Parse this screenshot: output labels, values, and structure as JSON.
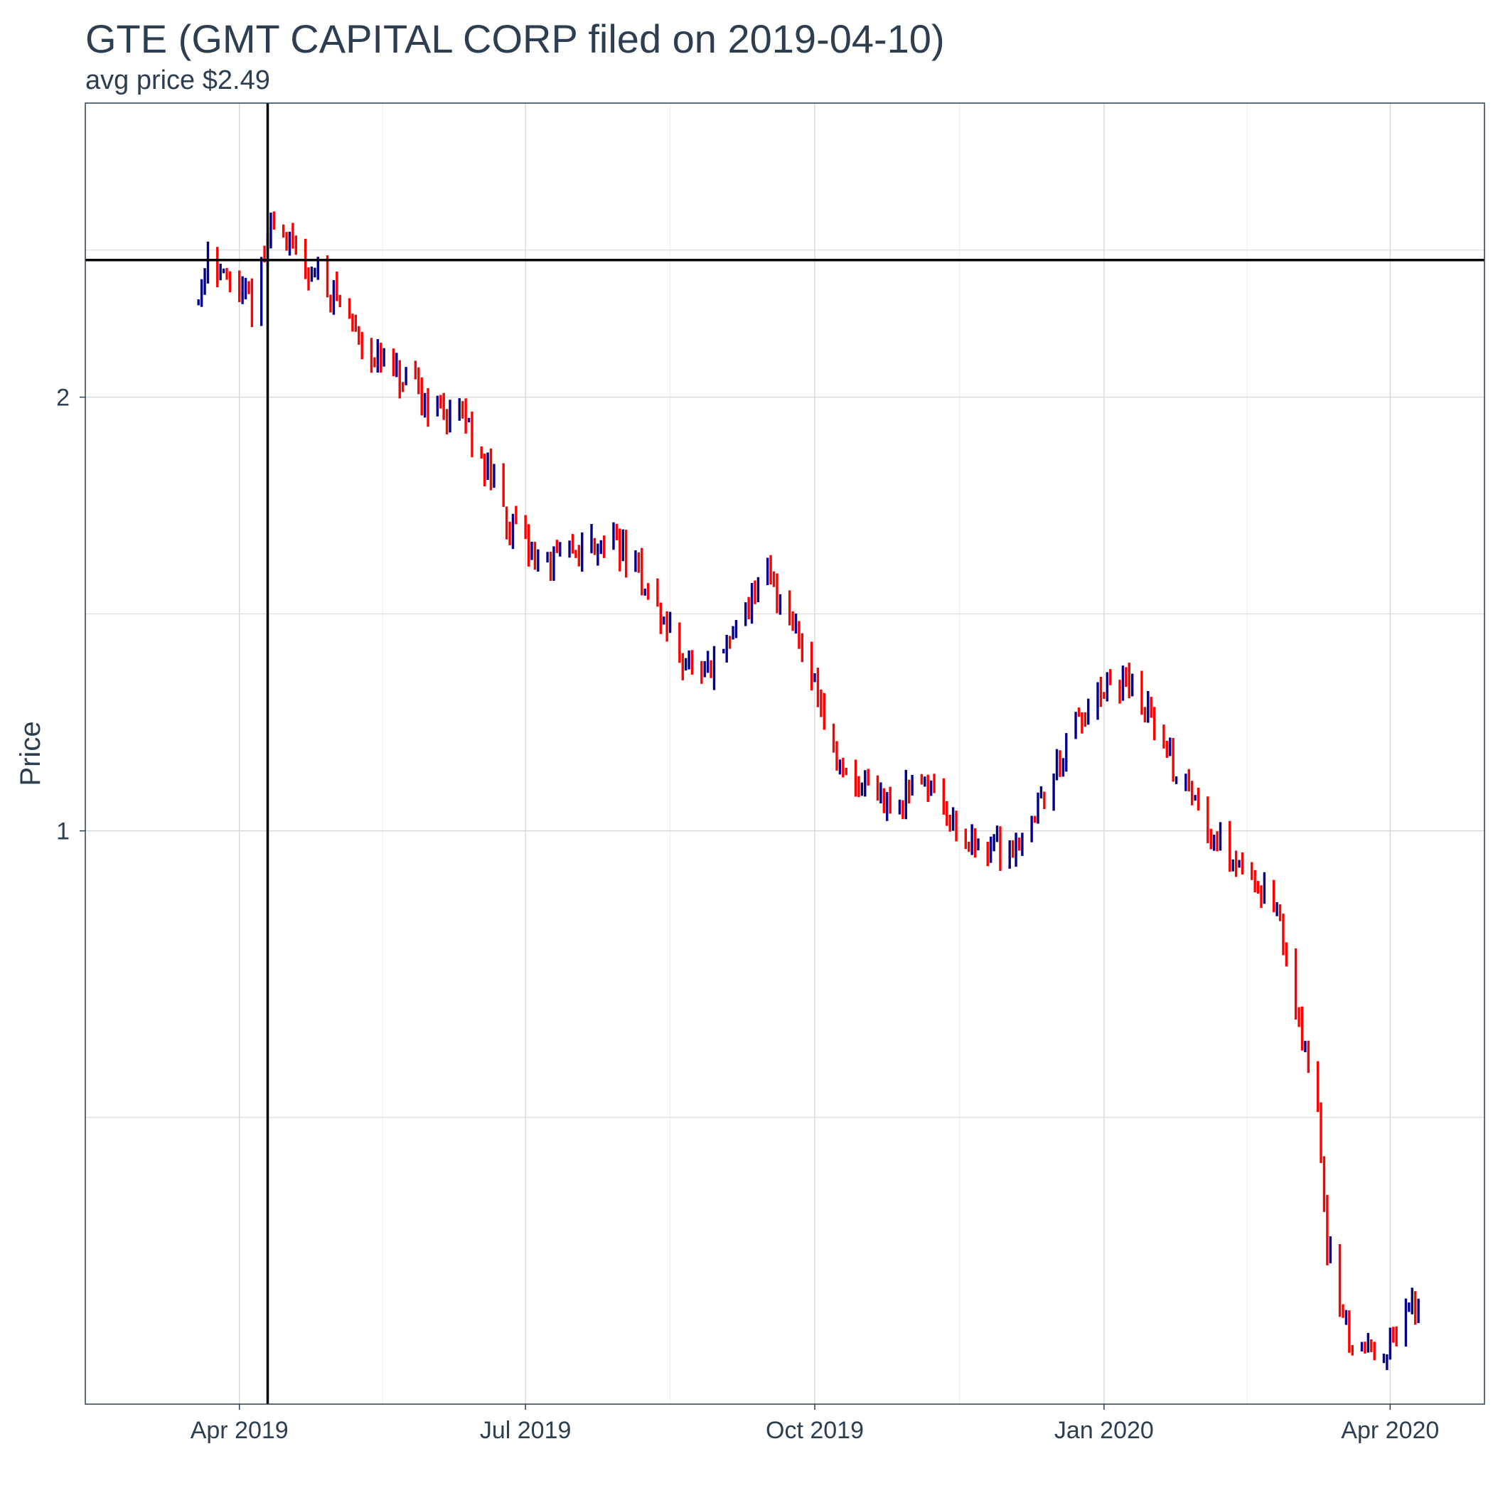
{
  "chart_data": {
    "type": "ohlc",
    "title": "GTE (GMT CAPITAL CORP filed on 2019-04-10)",
    "subtitle": "avg price $2.49",
    "xlabel": "",
    "ylabel": "Price",
    "x_ticks": [
      {
        "label": "Apr 2019",
        "date": "2019-04-01"
      },
      {
        "label": "Jul 2019",
        "date": "2019-07-01"
      },
      {
        "label": "Oct 2019",
        "date": "2019-10-01"
      },
      {
        "label": "Jan 2020",
        "date": "2020-01-01"
      },
      {
        "label": "Apr 2020",
        "date": "2020-04-01"
      }
    ],
    "y_scale": "log",
    "y_ticks": [
      1,
      2
    ],
    "x_range": [
      "2019-02-11",
      "2020-05-01"
    ],
    "y_range": [
      0.4,
      3.2
    ],
    "grid": true,
    "up_color": "#00008b",
    "down_color": "#ff0000",
    "reference_lines": {
      "vertical_date": "2019-04-10",
      "horizontal_price": 2.49
    },
    "anchors": [
      [
        "2019-03-19",
        2.33
      ],
      [
        "2019-03-22",
        2.55
      ],
      [
        "2019-03-27",
        2.42
      ],
      [
        "2019-04-01",
        2.35
      ],
      [
        "2019-04-05",
        2.33
      ],
      [
        "2019-04-09",
        2.5
      ],
      [
        "2019-04-12",
        2.68
      ],
      [
        "2019-04-18",
        2.52
      ],
      [
        "2019-04-24",
        2.45
      ],
      [
        "2019-05-01",
        2.36
      ],
      [
        "2019-05-08",
        2.23
      ],
      [
        "2019-05-15",
        2.12
      ],
      [
        "2019-05-22",
        2.05
      ],
      [
        "2019-05-29",
        2.0
      ],
      [
        "2019-06-05",
        1.96
      ],
      [
        "2019-06-12",
        1.93
      ],
      [
        "2019-06-19",
        1.78
      ],
      [
        "2019-06-26",
        1.63
      ],
      [
        "2019-07-01",
        1.58
      ],
      [
        "2019-07-08",
        1.53
      ],
      [
        "2019-07-15",
        1.56
      ],
      [
        "2019-07-22",
        1.58
      ],
      [
        "2019-07-29",
        1.6
      ],
      [
        "2019-08-05",
        1.52
      ],
      [
        "2019-08-12",
        1.42
      ],
      [
        "2019-08-19",
        1.33
      ],
      [
        "2019-08-26",
        1.26
      ],
      [
        "2019-09-02",
        1.33
      ],
      [
        "2019-09-09",
        1.44
      ],
      [
        "2019-09-16",
        1.5
      ],
      [
        "2019-09-23",
        1.42
      ],
      [
        "2019-09-30",
        1.3
      ],
      [
        "2019-10-07",
        1.12
      ],
      [
        "2019-10-14",
        1.07
      ],
      [
        "2019-10-21",
        1.05
      ],
      [
        "2019-10-28",
        1.04
      ],
      [
        "2019-11-04",
        1.1
      ],
      [
        "2019-11-11",
        1.05
      ],
      [
        "2019-11-18",
        0.98
      ],
      [
        "2019-11-25",
        0.98
      ],
      [
        "2019-12-02",
        0.97
      ],
      [
        "2019-12-09",
        1.02
      ],
      [
        "2019-12-16",
        1.1
      ],
      [
        "2019-12-23",
        1.18
      ],
      [
        "2020-01-01",
        1.24
      ],
      [
        "2020-01-08",
        1.27
      ],
      [
        "2020-01-15",
        1.21
      ],
      [
        "2020-01-22",
        1.12
      ],
      [
        "2020-01-29",
        1.06
      ],
      [
        "2020-02-05",
        1.0
      ],
      [
        "2020-02-12",
        0.96
      ],
      [
        "2020-02-19",
        0.92
      ],
      [
        "2020-02-24",
        0.89
      ],
      [
        "2020-03-02",
        0.76
      ],
      [
        "2020-03-06",
        0.68
      ],
      [
        "2020-03-09",
        0.64
      ],
      [
        "2020-03-12",
        0.52
      ],
      [
        "2020-03-16",
        0.46
      ],
      [
        "2020-03-20",
        0.44
      ],
      [
        "2020-03-27",
        0.44
      ],
      [
        "2020-04-01",
        0.44
      ],
      [
        "2020-04-06",
        0.46
      ],
      [
        "2020-04-10",
        0.47
      ]
    ]
  }
}
